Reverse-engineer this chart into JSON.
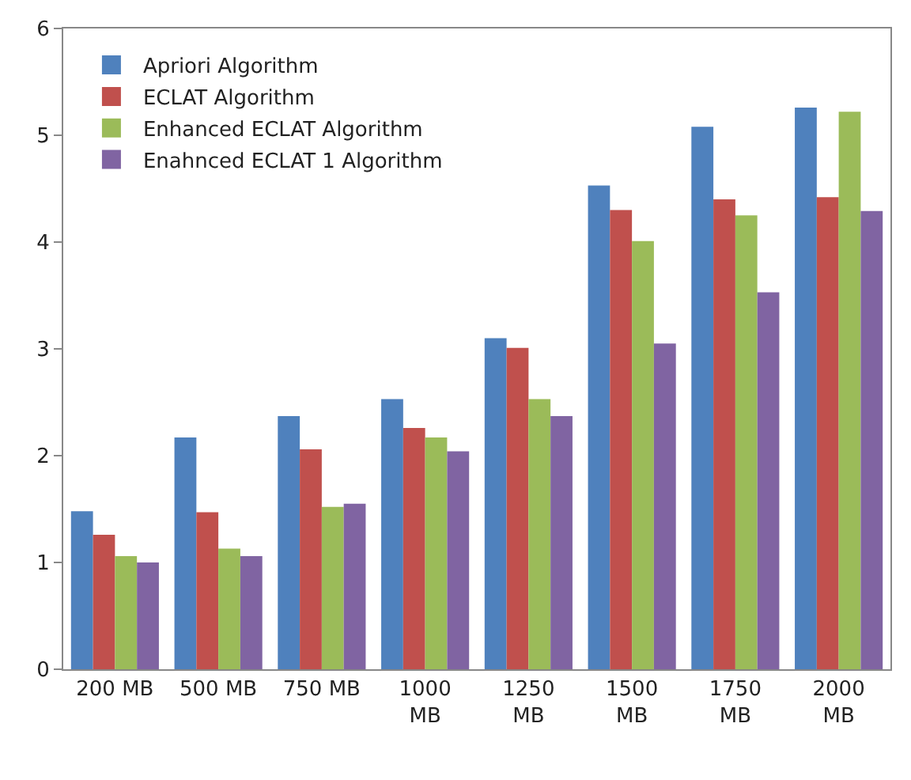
{
  "chart_data": {
    "type": "bar",
    "categories": [
      "200 MB",
      "500 MB",
      "750 MB",
      "1000 MB",
      "1250 MB",
      "1500 MB",
      "1750 MB",
      "2000 MB"
    ],
    "series": [
      {
        "name": "Apriori Algorithm",
        "color": "#4f81bd",
        "values": [
          1.48,
          2.17,
          2.37,
          2.53,
          3.1,
          4.53,
          5.08,
          5.26
        ]
      },
      {
        "name": "ECLAT Algorithm",
        "color": "#c0504d",
        "values": [
          1.26,
          1.47,
          2.06,
          2.26,
          3.01,
          4.3,
          4.4,
          4.42
        ]
      },
      {
        "name": "Enhanced ECLAT Algorithm",
        "color": "#9bbb59",
        "values": [
          1.06,
          1.13,
          1.52,
          2.17,
          2.53,
          4.01,
          4.25,
          5.22
        ]
      },
      {
        "name": "Enahnced ECLAT 1 Algorithm",
        "color": "#8064a2",
        "values": [
          1.0,
          1.06,
          1.55,
          2.04,
          2.37,
          3.05,
          3.53,
          4.29
        ]
      }
    ],
    "ylim": [
      0,
      6
    ],
    "yticks": [
      0,
      1,
      2,
      3,
      4,
      5,
      6
    ],
    "grid": false,
    "legend": "top left"
  }
}
